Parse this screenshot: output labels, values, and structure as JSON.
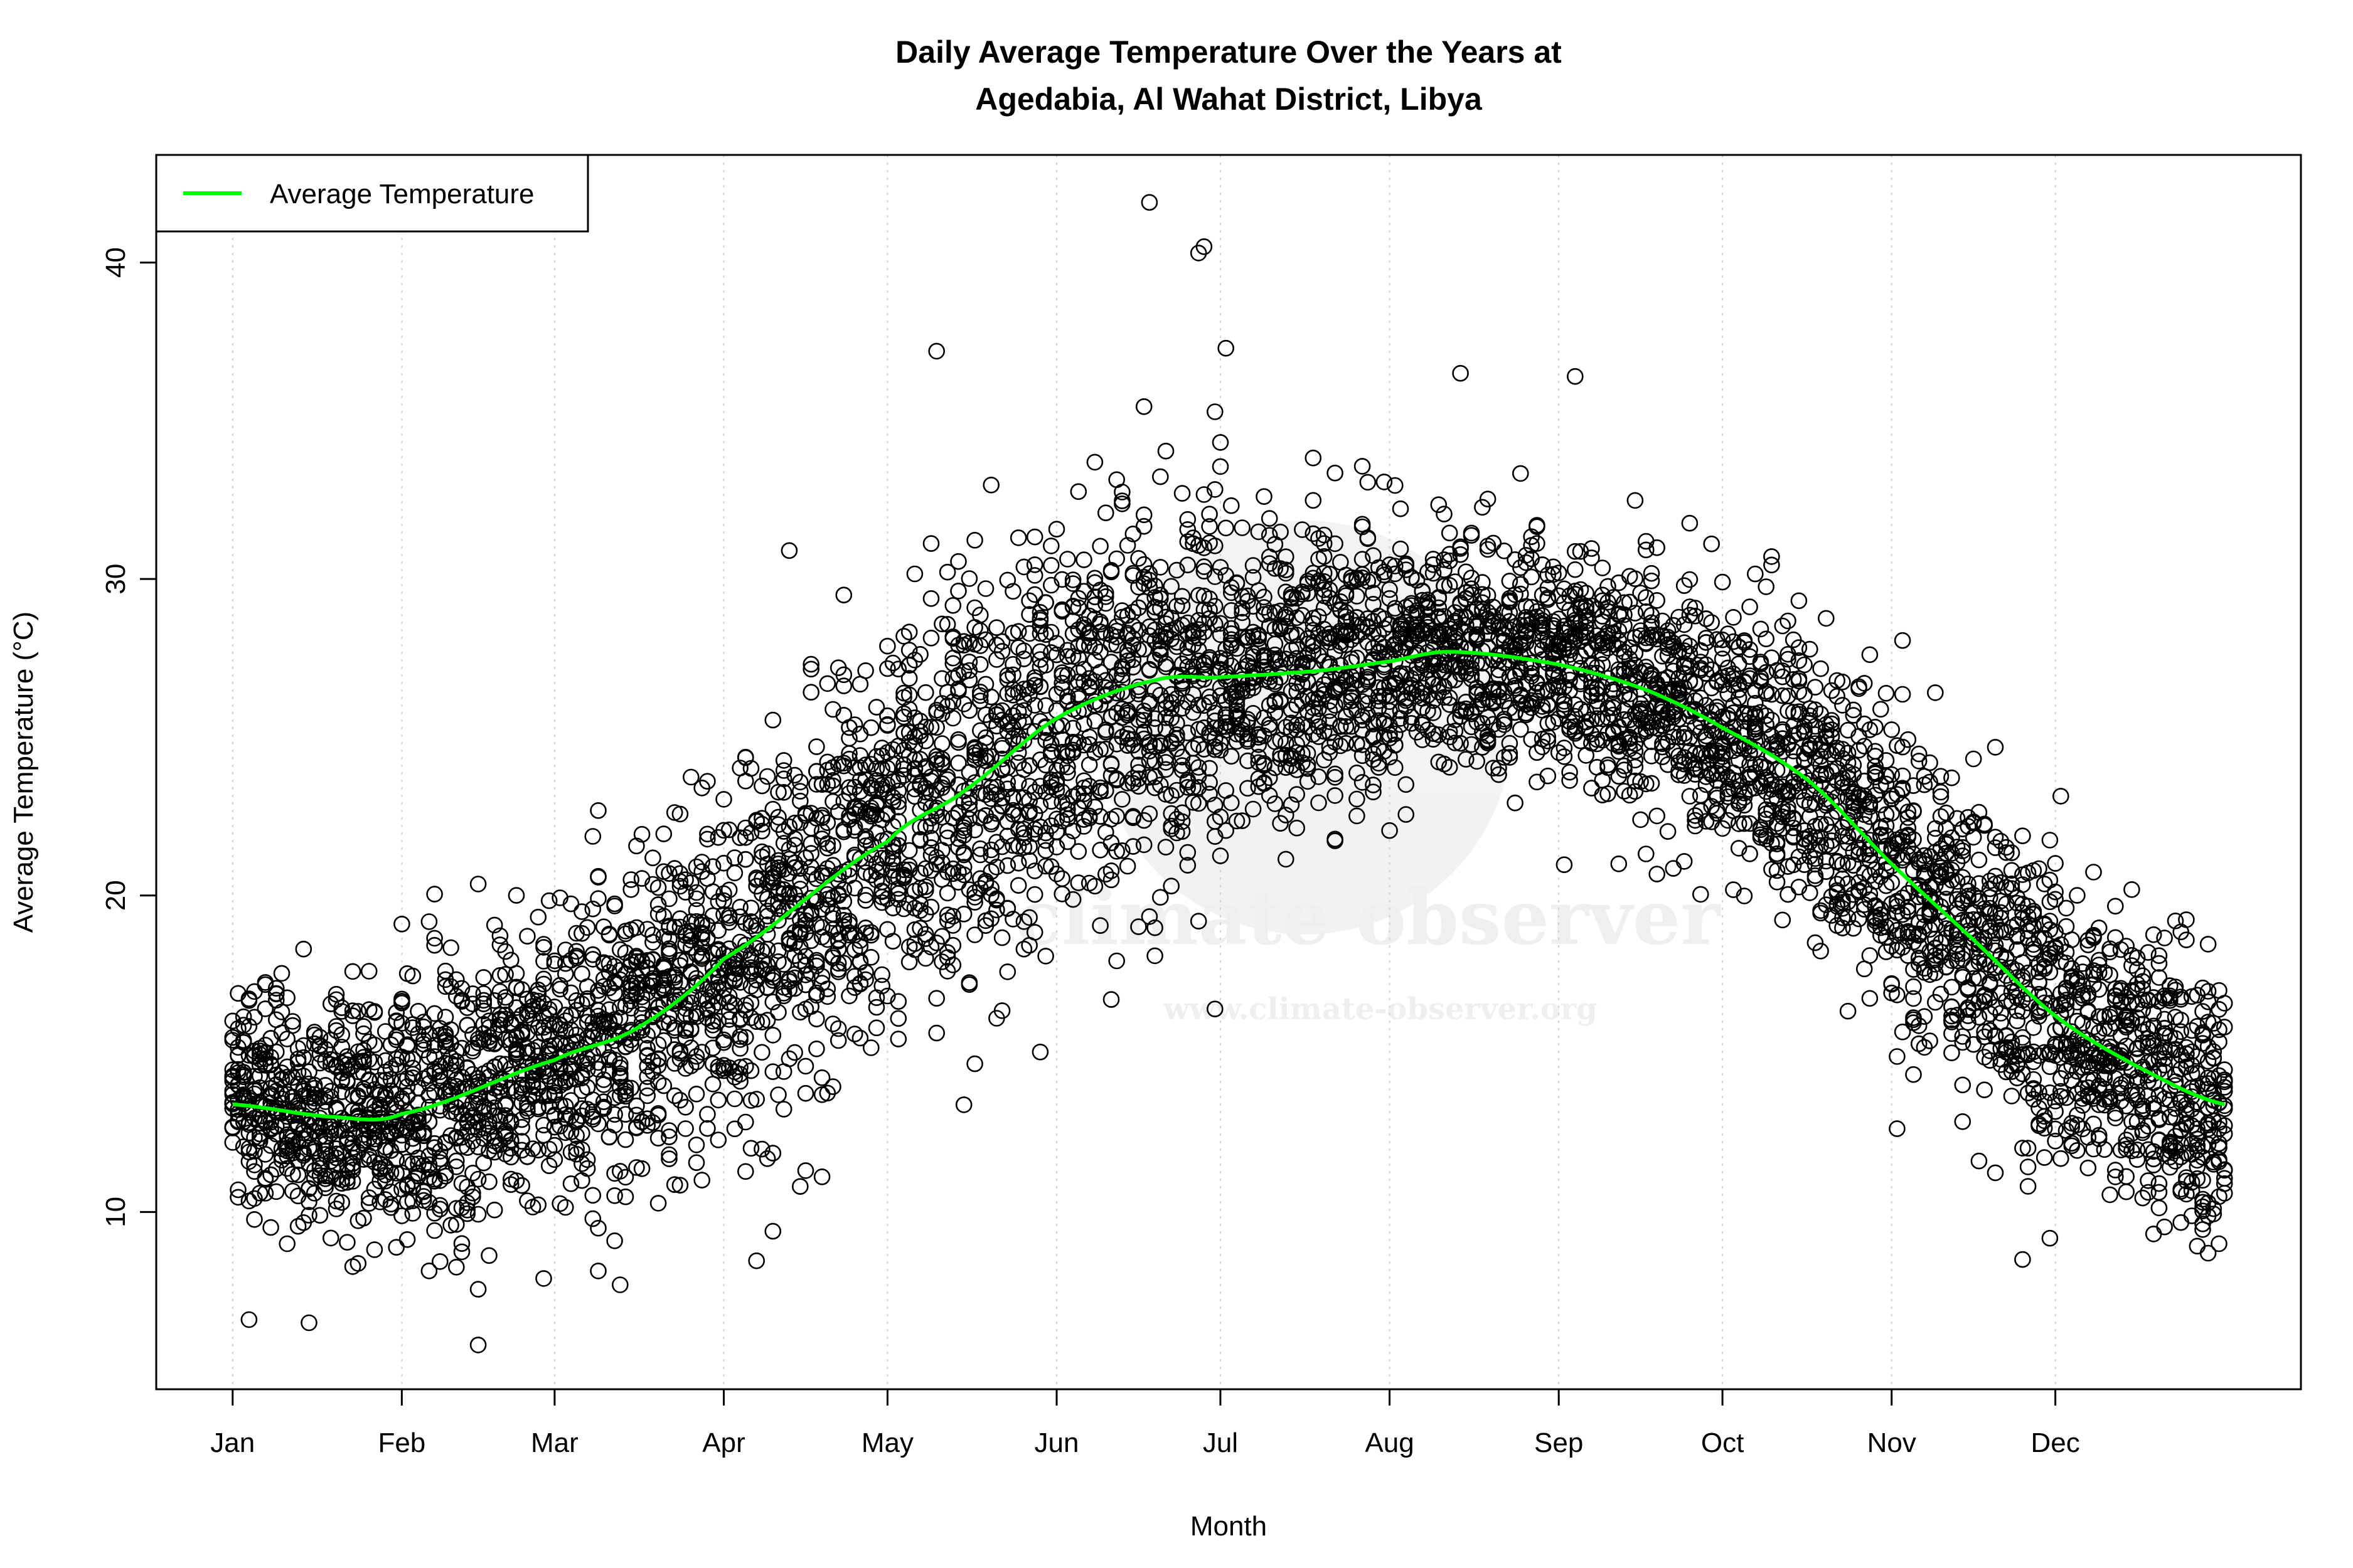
{
  "chart_data": {
    "type": "scatter",
    "title": "Daily Average Temperature Over the Years at\nAgedabia, Al Wahat District, Libya",
    "title_lines": [
      "Daily Average Temperature Over the Years at",
      "Agedabia, Al Wahat District, Libya"
    ],
    "xlabel": "Month",
    "ylabel": "Average Temperature (°C)",
    "x_ticks": [
      {
        "label": "Jan",
        "day": 1
      },
      {
        "label": "Feb",
        "day": 32
      },
      {
        "label": "Mar",
        "day": 60
      },
      {
        "label": "Apr",
        "day": 91
      },
      {
        "label": "May",
        "day": 121
      },
      {
        "label": "Jun",
        "day": 152
      },
      {
        "label": "Jul",
        "day": 182
      },
      {
        "label": "Aug",
        "day": 213
      },
      {
        "label": "Sep",
        "day": 244
      },
      {
        "label": "Oct",
        "day": 274
      },
      {
        "label": "Nov",
        "day": 305
      },
      {
        "label": "Dec",
        "day": 335
      }
    ],
    "y_ticks": [
      10,
      20,
      30,
      40
    ],
    "xlim": [
      -13,
      380
    ],
    "ylim": [
      4.4,
      43.4
    ],
    "grid": "vertical dotted at month starts",
    "legend": {
      "position": "top-left",
      "entries": [
        {
          "name": "Average Temperature",
          "color": "#00ff00"
        }
      ]
    },
    "series": [
      {
        "name": "Average Temperature",
        "type": "line",
        "color": "#00ff00",
        "x_day": [
          1,
          20,
          32,
          60,
          75,
          91,
          121,
          135,
          152,
          170,
          182,
          200,
          213,
          224,
          244,
          260,
          274,
          290,
          305,
          320,
          335,
          350,
          366
        ],
        "y": [
          13.4,
          13.0,
          13.1,
          14.8,
          15.8,
          18.0,
          21.7,
          23.3,
          25.6,
          26.8,
          26.9,
          27.1,
          27.4,
          27.7,
          27.3,
          26.5,
          25.3,
          23.6,
          21.0,
          18.6,
          16.2,
          14.6,
          13.4
        ]
      },
      {
        "name": "",
        "type": "scatter",
        "color": "#000000",
        "marker": "open-circle",
        "daily_spread_sd_by_month": [
          1.8,
          2.2,
          2.6,
          3.2,
          3.4,
          3.0,
          2.3,
          1.8,
          1.9,
          2.2,
          2.4,
          2.1
        ],
        "notable_points": [
          {
            "day": 169,
            "y": 41.9
          },
          {
            "day": 179,
            "y": 40.5
          },
          {
            "day": 178,
            "y": 40.3
          },
          {
            "day": 4,
            "y": 6.6
          },
          {
            "day": 15,
            "y": 6.5
          },
          {
            "day": 46,
            "y": 5.8
          },
          {
            "day": 130,
            "y": 37.2
          },
          {
            "day": 226,
            "y": 36.5
          },
          {
            "day": 247,
            "y": 36.4
          },
          {
            "day": 103,
            "y": 30.9
          },
          {
            "day": 329,
            "y": 8.5
          },
          {
            "day": 363,
            "y": 8.7
          }
        ]
      }
    ]
  },
  "watermark": {
    "name": "climate observer",
    "url": "www.climate-observer.org"
  }
}
